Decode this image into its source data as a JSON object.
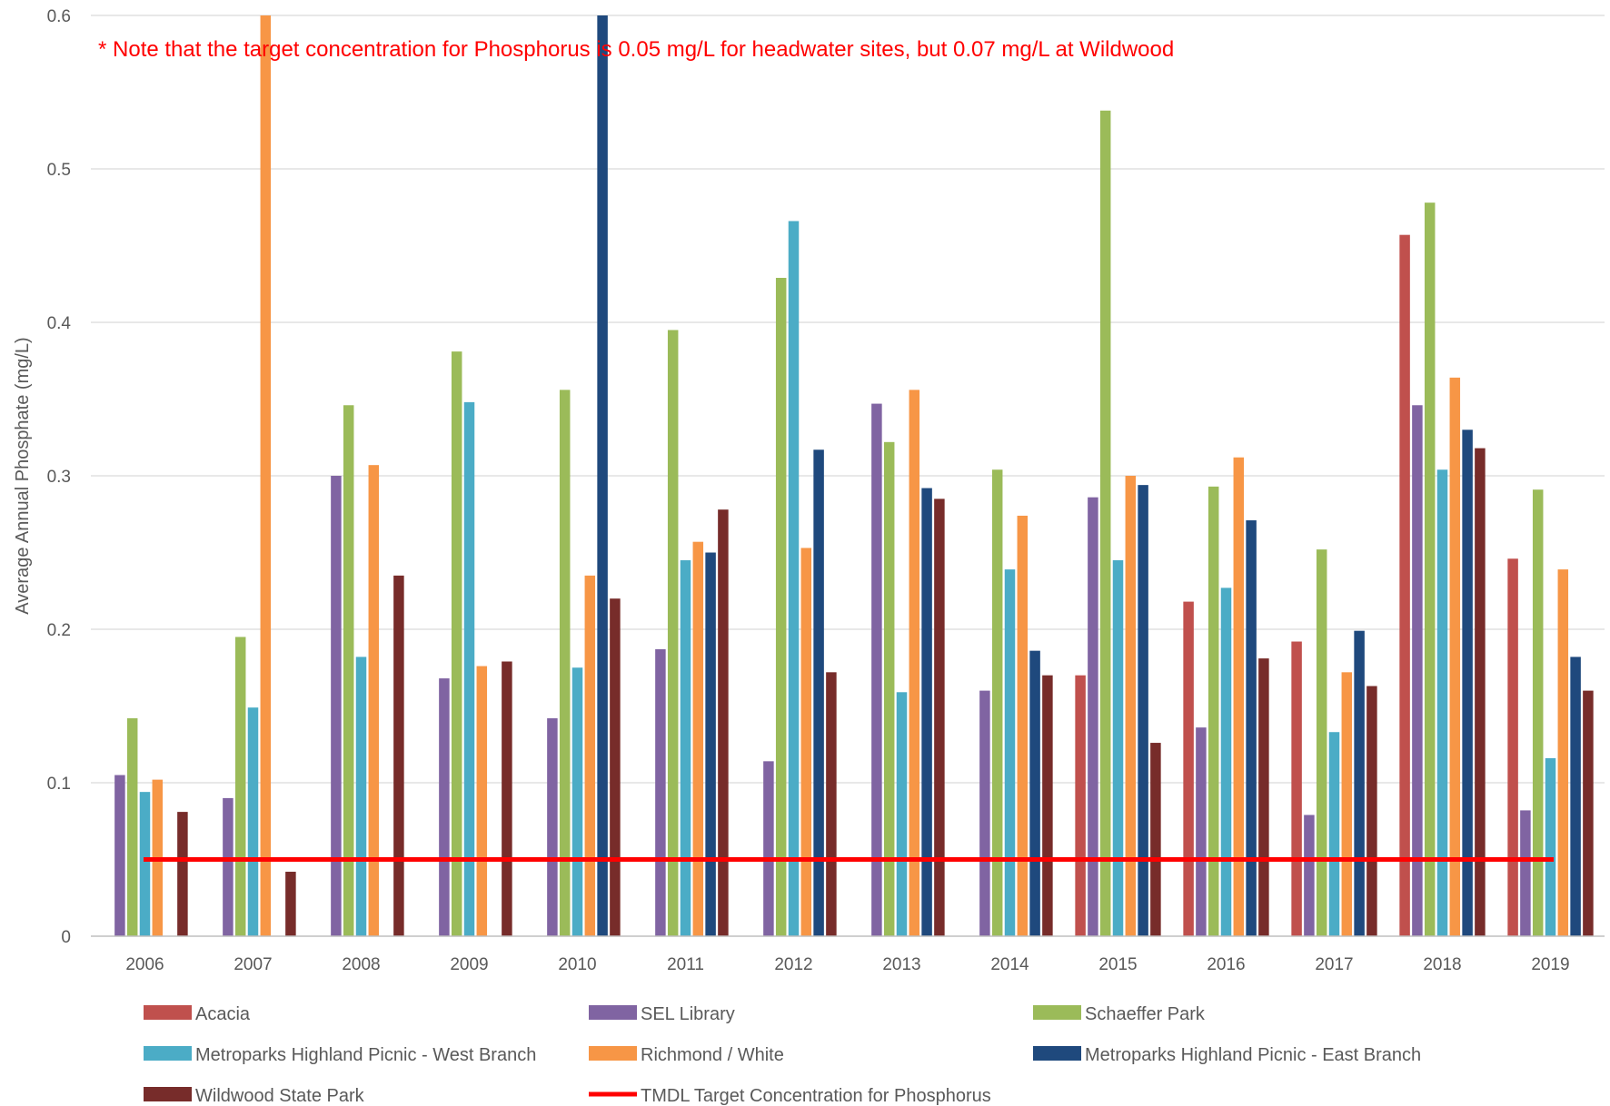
{
  "chart_data": {
    "type": "bar",
    "title": "",
    "annotation": "* Note that the target concentration for Phosphorus is 0.05 mg/L for headwater sites, but 0.07 mg/L at Wildwood",
    "xlabel": "",
    "ylabel": "Average Annual Phosphate (mg/L)",
    "ylim": [
      0,
      0.6
    ],
    "yticks": [
      0,
      0.1,
      0.2,
      0.3,
      0.4,
      0.5,
      0.6
    ],
    "ytick_labels": [
      "0",
      "0.1",
      "0.2",
      "0.3",
      "0.4",
      "0.5",
      "0.6"
    ],
    "grid": true,
    "legend_position": "bottom",
    "categories": [
      "2006",
      "2007",
      "2008",
      "2009",
      "2010",
      "2011",
      "2012",
      "2013",
      "2014",
      "2015",
      "2016",
      "2017",
      "2018",
      "2019"
    ],
    "series": [
      {
        "name": "Acacia",
        "color": "#c0504d",
        "values": [
          null,
          null,
          null,
          null,
          null,
          null,
          null,
          null,
          null,
          0.17,
          0.218,
          0.192,
          0.457,
          0.246
        ]
      },
      {
        "name": "SEL Library",
        "color": "#8064a2",
        "values": [
          0.105,
          0.09,
          0.3,
          0.168,
          0.142,
          0.187,
          0.114,
          0.347,
          0.16,
          0.286,
          0.136,
          0.079,
          0.346,
          0.082
        ]
      },
      {
        "name": "Schaeffer Park",
        "color": "#9bbb59",
        "values": [
          0.142,
          0.195,
          0.346,
          0.381,
          0.356,
          0.395,
          0.429,
          0.322,
          0.304,
          0.538,
          0.293,
          0.252,
          0.478,
          0.291
        ]
      },
      {
        "name": "Metroparks Highland Picnic - West Branch",
        "color": "#4bacc6",
        "values": [
          0.094,
          0.149,
          0.182,
          0.348,
          0.175,
          0.245,
          0.466,
          0.159,
          0.239,
          0.245,
          0.227,
          0.133,
          0.304,
          0.116
        ]
      },
      {
        "name": "Richmond / White",
        "color": "#f79646",
        "values": [
          0.102,
          0.6,
          0.307,
          0.176,
          0.235,
          0.257,
          0.253,
          0.356,
          0.274,
          0.3,
          0.312,
          0.172,
          0.364,
          0.239
        ]
      },
      {
        "name": "Metroparks Highland Picnic - East Branch",
        "color": "#1f497d",
        "values": [
          null,
          null,
          null,
          null,
          0.6,
          0.25,
          0.317,
          0.292,
          0.186,
          0.294,
          0.271,
          0.199,
          0.33,
          0.182
        ]
      },
      {
        "name": "Wildwood State Park",
        "color": "#772c2a",
        "values": [
          0.081,
          0.042,
          0.235,
          0.179,
          0.22,
          0.278,
          0.172,
          0.285,
          0.17,
          0.126,
          0.181,
          0.163,
          0.318,
          0.16
        ]
      }
    ],
    "reference_line": {
      "name": "TMDL Target Concentration for Phosphorus",
      "value": 0.05,
      "color": "#ff0000"
    }
  }
}
